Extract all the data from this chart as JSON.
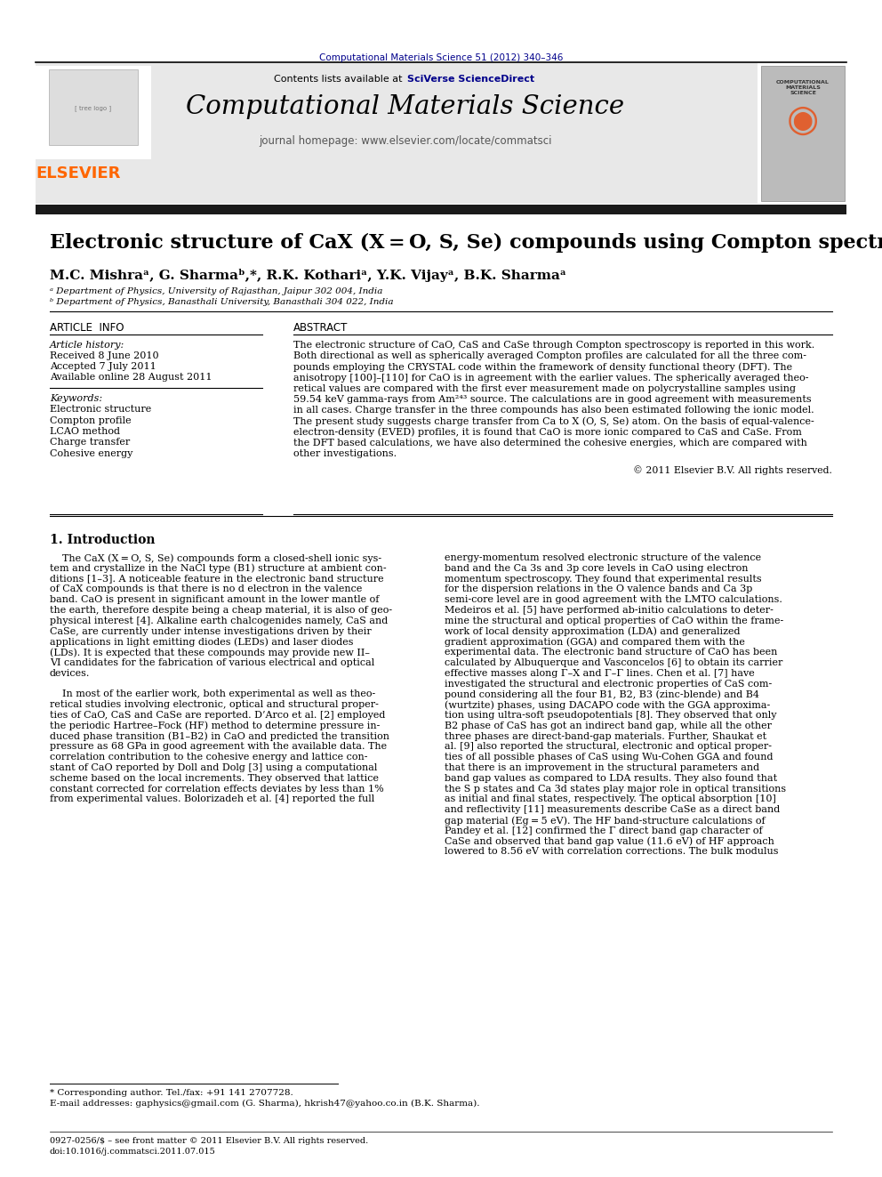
{
  "page_title": "Computational Materials Science 51 (2012) 340–346",
  "journal_name": "Computational Materials Science",
  "journal_homepage": "journal homepage: www.elsevier.com/locate/commatsci",
  "contents_line_plain": "Contents lists available at ",
  "contents_line_colored": "SciVerse ScienceDirect",
  "article_title": "Electronic structure of CaX (X = O, S, Se) compounds using Compton spectroscopy",
  "authors": "M.C. Mishraᵃ, G. Sharmaᵇ,*, R.K. Kothariᵃ, Y.K. Vijayᵃ, B.K. Sharmaᵃ",
  "affil_a": "ᵃ Department of Physics, University of Rajasthan, Jaipur 302 004, India",
  "affil_b": "ᵇ Department of Physics, Banasthali University, Banasthali 304 022, India",
  "article_info_header": "ARTICLE  INFO",
  "abstract_header": "ABSTRACT",
  "article_history_label": "Article history:",
  "received": "Received 8 June 2010",
  "accepted": "Accepted 7 July 2011",
  "available": "Available online 28 August 2011",
  "keywords_label": "Keywords:",
  "keywords": [
    "Electronic structure",
    "Compton profile",
    "LCAO method",
    "Charge transfer",
    "Cohesive energy"
  ],
  "abstract_lines": [
    "The electronic structure of CaO, CaS and CaSe through Compton spectroscopy is reported in this work.",
    "Both directional as well as spherically averaged Compton profiles are calculated for all the three com-",
    "pounds employing the CRYSTAL code within the framework of density functional theory (DFT). The",
    "anisotropy [100]–[110] for CaO is in agreement with the earlier values. The spherically averaged theo-",
    "retical values are compared with the first ever measurement made on polycrystalline samples using",
    "59.54 keV gamma-rays from Am²⁴³ source. The calculations are in good agreement with measurements",
    "in all cases. Charge transfer in the three compounds has also been estimated following the ionic model.",
    "The present study suggests charge transfer from Ca to X (O, S, Se) atom. On the basis of equal-valence-",
    "electron-density (EVED) profiles, it is found that CaO is more ionic compared to CaS and CaSe. From",
    "the DFT based calculations, we have also determined the cohesive energies, which are compared with",
    "other investigations."
  ],
  "copyright": "© 2011 Elsevier B.V. All rights reserved.",
  "intro_header": "1. Introduction",
  "intro_col1_lines": [
    "    The CaX (X = O, S, Se) compounds form a closed-shell ionic sys-",
    "tem and crystallize in the NaCl type (B1) structure at ambient con-",
    "ditions [1–3]. A noticeable feature in the electronic band structure",
    "of CaX compounds is that there is no d electron in the valence",
    "band. CaO is present in significant amount in the lower mantle of",
    "the earth, therefore despite being a cheap material, it is also of geo-",
    "physical interest [4]. Alkaline earth chalcogenides namely, CaS and",
    "CaSe, are currently under intense investigations driven by their",
    "applications in light emitting diodes (LEDs) and laser diodes",
    "(LDs). It is expected that these compounds may provide new II–",
    "VI candidates for the fabrication of various electrical and optical",
    "devices.",
    "",
    "    In most of the earlier work, both experimental as well as theo-",
    "retical studies involving electronic, optical and structural proper-",
    "ties of CaO, CaS and CaSe are reported. D’Arco et al. [2] employed",
    "the periodic Hartree–Fock (HF) method to determine pressure in-",
    "duced phase transition (B1–B2) in CaO and predicted the transition",
    "pressure as 68 GPa in good agreement with the available data. The",
    "correlation contribution to the cohesive energy and lattice con-",
    "stant of CaO reported by Doll and Dolg [3] using a computational",
    "scheme based on the local increments. They observed that lattice",
    "constant corrected for correlation effects deviates by less than 1%",
    "from experimental values. Bolorizadeh et al. [4] reported the full"
  ],
  "intro_col2_lines": [
    "energy-momentum resolved electronic structure of the valence",
    "band and the Ca 3s and 3p core levels in CaO using electron",
    "momentum spectroscopy. They found that experimental results",
    "for the dispersion relations in the O valence bands and Ca 3p",
    "semi-core level are in good agreement with the LMTO calculations.",
    "Medeiros et al. [5] have performed ab-initio calculations to deter-",
    "mine the structural and optical properties of CaO within the frame-",
    "work of local density approximation (LDA) and generalized",
    "gradient approximation (GGA) and compared them with the",
    "experimental data. The electronic band structure of CaO has been",
    "calculated by Albuquerque and Vasconcelos [6] to obtain its carrier",
    "effective masses along Γ–X and Γ–Γ lines. Chen et al. [7] have",
    "investigated the structural and electronic properties of CaS com-",
    "pound considering all the four B1, B2, B3 (zinc-blende) and B4",
    "(wurtzite) phases, using DACAPO code with the GGA approxima-",
    "tion using ultra-soft pseudopotentials [8]. They observed that only",
    "B2 phase of CaS has got an indirect band gap, while all the other",
    "three phases are direct-band-gap materials. Further, Shaukat et",
    "al. [9] also reported the structural, electronic and optical proper-",
    "ties of all possible phases of CaS using Wu-Cohen GGA and found",
    "that there is an improvement in the structural parameters and",
    "band gap values as compared to LDA results. They also found that",
    "the S p states and Ca 3d states play major role in optical transitions",
    "as initial and final states, respectively. The optical absorption [10]",
    "and reflectivity [11] measurements describe CaSe as a direct band",
    "gap material (Eg = 5 eV). The HF band-structure calculations of",
    "Pandey et al. [12] confirmed the Γ direct band gap character of",
    "CaSe and observed that band gap value (11.6 eV) of HF approach",
    "lowered to 8.56 eV with correlation corrections. The bulk modulus"
  ],
  "footnote_star": "* Corresponding author. Tel./fax: +91 141 2707728.",
  "footnote_email": "E-mail addresses: gaphysics@gmail.com (G. Sharma), hkrish47@yahoo.co.in (B.K. Sharma).",
  "footer_left": "0927-0256/$ – see front matter © 2011 Elsevier B.V. All rights reserved.",
  "footer_doi": "doi:10.1016/j.commatsci.2011.07.015",
  "bg_color": "#ffffff",
  "text_color": "#000000",
  "blue_color": "#00008B",
  "elsevier_orange": "#FF6600",
  "header_bg": "#e8e8e8",
  "dark_bar_color": "#1a1a1a",
  "cover_box_color": "#bbbbbb",
  "cover_text_color": "#333333"
}
